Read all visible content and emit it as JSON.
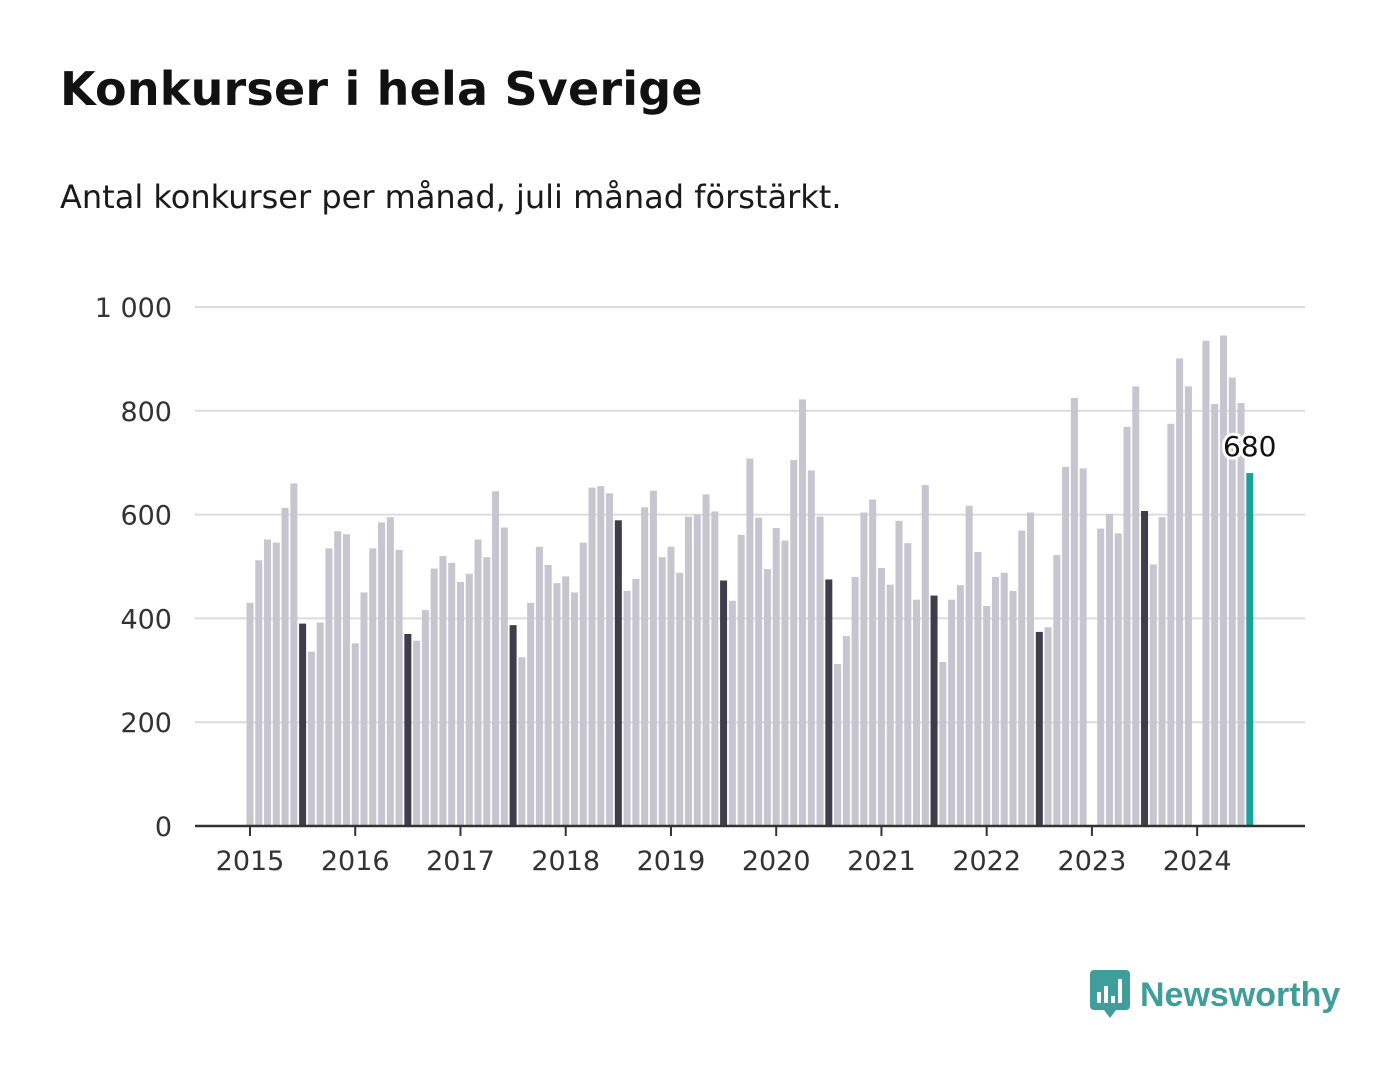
{
  "header": {
    "title": "Konkurser i hela Sverige",
    "subtitle": "Antal konkurser per månad, juli månad förstärkt."
  },
  "brand": {
    "name": "Newsworthy",
    "icon": "bar-chart-speech-bubble-icon",
    "color": "#3f9e9b"
  },
  "colors": {
    "bar": "#c6c5d0",
    "july_bar": "#3f3d4c",
    "latest_bar": "#1aa396",
    "grid": "#dcdcdc",
    "axis": "#333333"
  },
  "chart_data": {
    "type": "bar",
    "ylim": [
      0,
      1000
    ],
    "yticks": [
      0,
      200,
      400,
      600,
      800,
      1000
    ],
    "ytick_labels": [
      "0",
      "200",
      "400",
      "600",
      "800",
      "1 000"
    ],
    "xtick_labels": [
      "2015",
      "2016",
      "2017",
      "2018",
      "2019",
      "2020",
      "2021",
      "2022",
      "2023",
      "2024"
    ],
    "start": "2015-01",
    "end": "2024-07",
    "highlight": "juli",
    "grid": true,
    "annotation": {
      "month": "2024-07",
      "label": "680"
    },
    "values": [
      430,
      512,
      552,
      546,
      613,
      660,
      390,
      336,
      392,
      535,
      568,
      562,
      352,
      450,
      535,
      585,
      595,
      532,
      370,
      357,
      416,
      496,
      520,
      507,
      470,
      486,
      552,
      518,
      645,
      575,
      387,
      325,
      430,
      538,
      503,
      468,
      481,
      450,
      546,
      652,
      655,
      641,
      589,
      453,
      476,
      614,
      646,
      518,
      538,
      488,
      596,
      600,
      639,
      606,
      473,
      434,
      561,
      708,
      594,
      495,
      574,
      550,
      705,
      822,
      685,
      596,
      475,
      312,
      366,
      480,
      604,
      629,
      497,
      465,
      588,
      545,
      436,
      657,
      444,
      316,
      436,
      464,
      617,
      528,
      424,
      480,
      488,
      453,
      569,
      604,
      374,
      383,
      522,
      692,
      825,
      689,
      null,
      573,
      601,
      564,
      769,
      847,
      607,
      504,
      595,
      775,
      901,
      847,
      null,
      935,
      813,
      945,
      864,
      815,
      680
    ]
  }
}
